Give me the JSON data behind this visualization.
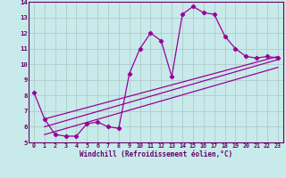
{
  "xlabel": "Windchill (Refroidissement éolien,°C)",
  "bg_color": "#c8eaea",
  "line_color": "#990099",
  "grid_color": "#b0cccc",
  "axis_color": "#660066",
  "xlim": [
    -0.5,
    23.5
  ],
  "ylim": [
    5,
    14
  ],
  "x_ticks": [
    0,
    1,
    2,
    3,
    4,
    5,
    6,
    7,
    8,
    9,
    10,
    11,
    12,
    13,
    14,
    15,
    16,
    17,
    18,
    19,
    20,
    21,
    22,
    23
  ],
  "y_ticks": [
    5,
    6,
    7,
    8,
    9,
    10,
    11,
    12,
    13,
    14
  ],
  "series_main_x": [
    0,
    1,
    2,
    3,
    4,
    5,
    6,
    7,
    8,
    9,
    10,
    11,
    12,
    13,
    14,
    15,
    16,
    17,
    18,
    19,
    20,
    21,
    22,
    23
  ],
  "series_main_y": [
    8.2,
    6.5,
    5.5,
    5.4,
    5.4,
    6.2,
    6.3,
    6.0,
    5.9,
    9.4,
    11.0,
    12.0,
    11.5,
    9.2,
    13.2,
    13.7,
    13.3,
    13.2,
    11.8,
    11.0,
    10.5,
    10.4,
    10.5,
    10.4
  ],
  "line1_x": [
    1,
    23
  ],
  "line1_y": [
    6.0,
    10.3
  ],
  "line2_x": [
    1,
    23
  ],
  "line2_y": [
    6.5,
    10.5
  ],
  "line3_x": [
    1,
    23
  ],
  "line3_y": [
    5.5,
    9.8
  ]
}
